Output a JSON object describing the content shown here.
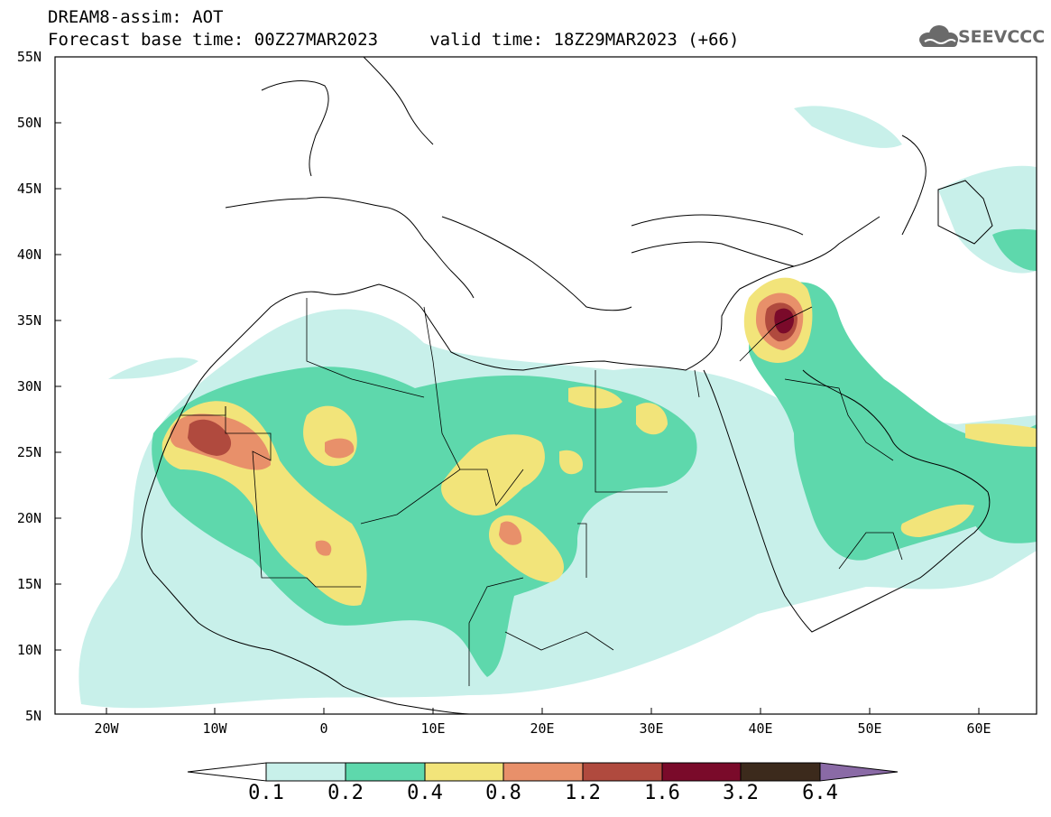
{
  "header": {
    "title_line1": "DREAM8-assim: AOT",
    "title_line2": "Forecast base time: 00Z27MAR2023     valid time: 18Z29MAR2023 (+66)",
    "logo_text": "SEEVCCC"
  },
  "map": {
    "lat_labels": [
      "55N",
      "50N",
      "45N",
      "40N",
      "35N",
      "30N",
      "25N",
      "20N",
      "15N",
      "10N",
      "5N"
    ],
    "lon_labels": [
      "20W",
      "10W",
      "0",
      "10E",
      "20E",
      "30E",
      "40E",
      "50E",
      "60E"
    ]
  },
  "colorbar": {
    "labels": [
      "0.1",
      "0.2",
      "0.4",
      "0.8",
      "1.2",
      "1.6",
      "3.2",
      "6.4"
    ],
    "colors": [
      "#ffffff",
      "#c8f0ea",
      "#5ed8ac",
      "#f2e47a",
      "#e8906a",
      "#b04a3e",
      "#7a0a2a",
      "#3c2a1c",
      "#8a6aa6"
    ]
  }
}
